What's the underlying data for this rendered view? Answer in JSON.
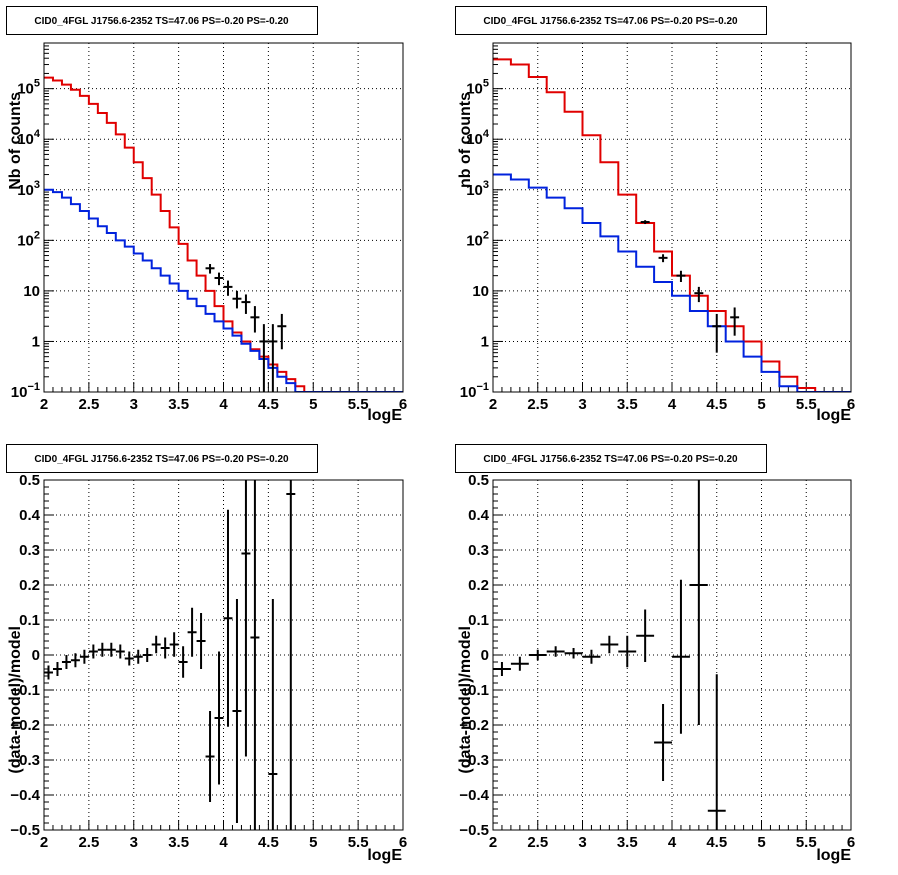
{
  "colors": {
    "data": "#000000",
    "model": "#e00000",
    "component": "#0022dd",
    "grid": "#000000"
  },
  "chart_data": [
    {
      "type": "line",
      "title": "CID0_4FGL J1756.6-2352 TS=47.06 PS=-0.20 PS=-0.20",
      "xlabel": "logE",
      "ylabel": "Nb of counts",
      "xlim": [
        2,
        6
      ],
      "ylim": [
        0.1,
        800000
      ],
      "log_y": true,
      "grid": true,
      "x_ticks": [
        "2",
        "2.5",
        "3",
        "3.5",
        "4",
        "4.5",
        "5",
        "5.5",
        "6"
      ],
      "y_ticks": [
        {
          "v": 0.1,
          "b": "10",
          "e": "−1"
        },
        {
          "v": 1,
          "b": "1",
          "e": ""
        },
        {
          "v": 10,
          "b": "10",
          "e": ""
        },
        {
          "v": 100,
          "b": "10",
          "e": "2"
        },
        {
          "v": 1000,
          "b": "10",
          "e": "3"
        },
        {
          "v": 10000,
          "b": "10",
          "e": "4"
        },
        {
          "v": 100000,
          "b": "10",
          "e": "5"
        }
      ],
      "bin_edges": [
        2.0,
        2.1,
        2.2,
        2.3,
        2.4,
        2.5,
        2.6,
        2.7,
        2.8,
        2.9,
        3.0,
        3.1,
        3.2,
        3.3,
        3.4,
        3.5,
        3.6,
        3.7,
        3.8,
        3.9,
        4.0,
        4.1,
        4.2,
        4.3,
        4.4,
        4.5,
        4.6,
        4.7,
        4.8,
        4.9,
        5.0,
        5.1,
        5.2,
        5.3,
        5.4,
        5.5,
        5.6,
        5.7,
        5.8,
        5.9,
        6.0
      ],
      "series": [
        {
          "kind": "step",
          "role": "model",
          "values": [
            165000,
            145000,
            120000,
            95000,
            72000,
            50000,
            33000,
            21000,
            12500,
            6800,
            3500,
            1700,
            800,
            380,
            180,
            85,
            40,
            20,
            10,
            5,
            2.5,
            1.5,
            1.0,
            0.7,
            0.5,
            0.35,
            0.25,
            0.18,
            0.13,
            0.1,
            0.1,
            0.1,
            0.1,
            0.1,
            0.1,
            0.1,
            0.1,
            0.1,
            0.1,
            0.1
          ]
        },
        {
          "kind": "step",
          "role": "component",
          "values": [
            1000,
            900,
            700,
            520,
            380,
            270,
            190,
            140,
            100,
            75,
            55,
            40,
            28,
            20,
            14,
            10,
            7,
            5,
            3.5,
            2.5,
            1.8,
            1.3,
            0.9,
            0.65,
            0.45,
            0.3,
            0.2,
            0.15,
            0.1,
            0.1,
            0.1,
            0.1,
            0.1,
            0.1,
            0.1,
            0.1,
            0.1,
            0.1,
            0.1,
            0.1
          ]
        },
        {
          "kind": "points",
          "role": "data",
          "points": [
            {
              "x": 3.85,
              "y": 28,
              "lo": 22,
              "hi": 34
            },
            {
              "x": 3.95,
              "y": 18,
              "lo": 13,
              "hi": 23
            },
            {
              "x": 4.05,
              "y": 12,
              "lo": 8,
              "hi": 16
            },
            {
              "x": 4.15,
              "y": 7,
              "lo": 4.5,
              "hi": 10
            },
            {
              "x": 4.25,
              "y": 6,
              "lo": 3.5,
              "hi": 8.5
            },
            {
              "x": 4.35,
              "y": 3,
              "lo": 1.5,
              "hi": 5
            },
            {
              "x": 4.45,
              "y": 1,
              "lo": 0.1,
              "hi": 2.2
            },
            {
              "x": 4.55,
              "y": 1,
              "lo": 0.1,
              "hi": 2.2
            },
            {
              "x": 4.65,
              "y": 2,
              "lo": 0.7,
              "hi": 3.5
            }
          ]
        }
      ]
    },
    {
      "type": "line",
      "title": "CID0_4FGL J1756.6-2352 TS=47.06 PS=-0.20 PS=-0.20",
      "xlabel": "logE",
      "ylabel": "nb of counts",
      "xlim": [
        2,
        6
      ],
      "ylim": [
        0.1,
        800000
      ],
      "log_y": true,
      "grid": true,
      "x_ticks": [
        "2",
        "2.5",
        "3",
        "3.5",
        "4",
        "4.5",
        "5",
        "5.5",
        "6"
      ],
      "y_ticks": [
        {
          "v": 0.1,
          "b": "10",
          "e": "−1"
        },
        {
          "v": 1,
          "b": "1",
          "e": ""
        },
        {
          "v": 10,
          "b": "10",
          "e": ""
        },
        {
          "v": 100,
          "b": "10",
          "e": "2"
        },
        {
          "v": 1000,
          "b": "10",
          "e": "3"
        },
        {
          "v": 10000,
          "b": "10",
          "e": "4"
        },
        {
          "v": 100000,
          "b": "10",
          "e": "5"
        }
      ],
      "bin_edges": [
        2.0,
        2.2,
        2.4,
        2.6,
        2.8,
        3.0,
        3.2,
        3.4,
        3.6,
        3.8,
        4.0,
        4.2,
        4.4,
        4.6,
        4.8,
        5.0,
        5.2,
        5.4,
        5.6,
        5.8,
        6.0
      ],
      "series": [
        {
          "kind": "step",
          "role": "model",
          "values": [
            380000,
            300000,
            170000,
            85000,
            35000,
            12000,
            3500,
            800,
            220,
            60,
            20,
            8,
            4,
            2,
            1,
            0.4,
            0.2,
            0.12,
            0.1,
            0.1
          ]
        },
        {
          "kind": "step",
          "role": "component",
          "values": [
            2000,
            1600,
            1100,
            700,
            430,
            220,
            120,
            60,
            30,
            15,
            8,
            4,
            2,
            1,
            0.5,
            0.25,
            0.13,
            0.1,
            0.1,
            0.1
          ]
        },
        {
          "kind": "points",
          "role": "data",
          "points": [
            {
              "x": 3.7,
              "y": 230,
              "lo": 210,
              "hi": 250
            },
            {
              "x": 3.9,
              "y": 45,
              "lo": 37,
              "hi": 53
            },
            {
              "x": 4.1,
              "y": 20,
              "lo": 15,
              "hi": 25
            },
            {
              "x": 4.3,
              "y": 9,
              "lo": 6,
              "hi": 12
            },
            {
              "x": 4.5,
              "y": 2,
              "lo": 0.6,
              "hi": 3.5
            },
            {
              "x": 4.7,
              "y": 3,
              "lo": 1.3,
              "hi": 4.7
            }
          ]
        }
      ]
    },
    {
      "type": "scatter",
      "title": "CID0_4FGL J1756.6-2352 TS=47.06 PS=-0.20 PS=-0.20",
      "xlabel": "logE",
      "ylabel": "(data-model)/model",
      "xlim": [
        2,
        6
      ],
      "ylim": [
        -0.5,
        0.5
      ],
      "log_y": false,
      "grid": true,
      "x_ticks": [
        "2",
        "2.5",
        "3",
        "3.5",
        "4",
        "4.5",
        "5",
        "5.5",
        "6"
      ],
      "y_ticks": [
        {
          "v": -0.5,
          "b": "−0.5"
        },
        {
          "v": -0.4,
          "b": "−0.4"
        },
        {
          "v": -0.3,
          "b": "−0.3"
        },
        {
          "v": -0.2,
          "b": "−0.2"
        },
        {
          "v": -0.1,
          "b": "−0.1"
        },
        {
          "v": 0,
          "b": "0"
        },
        {
          "v": 0.1,
          "b": "0.1"
        },
        {
          "v": 0.2,
          "b": "0.2"
        },
        {
          "v": 0.3,
          "b": "0.3"
        },
        {
          "v": 0.4,
          "b": "0.4"
        },
        {
          "v": 0.5,
          "b": "0.5"
        }
      ],
      "half_width": 0.05,
      "series": [
        {
          "kind": "points",
          "role": "data",
          "points": [
            {
              "x": 2.05,
              "y": -0.05,
              "err": 0.02
            },
            {
              "x": 2.15,
              "y": -0.04,
              "err": 0.02
            },
            {
              "x": 2.25,
              "y": -0.02,
              "err": 0.02
            },
            {
              "x": 2.35,
              "y": -0.015,
              "err": 0.02
            },
            {
              "x": 2.45,
              "y": -0.005,
              "err": 0.02
            },
            {
              "x": 2.55,
              "y": 0.01,
              "err": 0.02
            },
            {
              "x": 2.65,
              "y": 0.015,
              "err": 0.02
            },
            {
              "x": 2.75,
              "y": 0.015,
              "err": 0.02
            },
            {
              "x": 2.85,
              "y": 0.01,
              "err": 0.02
            },
            {
              "x": 2.95,
              "y": -0.01,
              "err": 0.02
            },
            {
              "x": 3.05,
              "y": -0.005,
              "err": 0.02
            },
            {
              "x": 3.15,
              "y": 0.0,
              "err": 0.02
            },
            {
              "x": 3.25,
              "y": 0.03,
              "err": 0.025
            },
            {
              "x": 3.35,
              "y": 0.02,
              "err": 0.03
            },
            {
              "x": 3.45,
              "y": 0.03,
              "err": 0.035
            },
            {
              "x": 3.55,
              "y": -0.02,
              "err": 0.045
            },
            {
              "x": 3.65,
              "y": 0.065,
              "err": 0.07
            },
            {
              "x": 3.75,
              "y": 0.04,
              "err": 0.08
            },
            {
              "x": 3.85,
              "y": -0.29,
              "err": 0.13
            },
            {
              "x": 3.95,
              "y": -0.18,
              "err": 0.19
            },
            {
              "x": 4.05,
              "y": 0.105,
              "err": 0.31
            },
            {
              "x": 4.15,
              "y": -0.16,
              "err": 0.32
            },
            {
              "x": 4.25,
              "y": 0.29,
              "err": 0.58
            },
            {
              "x": 4.35,
              "y": 0.05,
              "err": 0.6
            },
            {
              "x": 4.55,
              "y": -0.34,
              "err": 0.5
            },
            {
              "x": 4.75,
              "y": 0.46,
              "err": 1.0
            }
          ]
        }
      ]
    },
    {
      "type": "scatter",
      "title": "CID0_4FGL J1756.6-2352 TS=47.06 PS=-0.20 PS=-0.20",
      "xlabel": "logE",
      "ylabel": "(data-model)/model",
      "xlim": [
        2,
        6
      ],
      "ylim": [
        -0.5,
        0.5
      ],
      "log_y": false,
      "grid": true,
      "x_ticks": [
        "2",
        "2.5",
        "3",
        "3.5",
        "4",
        "4.5",
        "5",
        "5.5",
        "6"
      ],
      "y_ticks": [
        {
          "v": -0.5,
          "b": "−0.5"
        },
        {
          "v": -0.4,
          "b": "−0.4"
        },
        {
          "v": -0.3,
          "b": "−0.3"
        },
        {
          "v": -0.2,
          "b": "−0.2"
        },
        {
          "v": -0.1,
          "b": "−0.1"
        },
        {
          "v": 0,
          "b": "0"
        },
        {
          "v": 0.1,
          "b": "0.1"
        },
        {
          "v": 0.2,
          "b": "0.2"
        },
        {
          "v": 0.3,
          "b": "0.3"
        },
        {
          "v": 0.4,
          "b": "0.4"
        },
        {
          "v": 0.5,
          "b": "0.5"
        }
      ],
      "half_width": 0.1,
      "series": [
        {
          "kind": "points",
          "role": "data",
          "points": [
            {
              "x": 2.1,
              "y": -0.04,
              "err": 0.02
            },
            {
              "x": 2.3,
              "y": -0.025,
              "err": 0.02
            },
            {
              "x": 2.5,
              "y": 0.0,
              "err": 0.015
            },
            {
              "x": 2.7,
              "y": 0.01,
              "err": 0.015
            },
            {
              "x": 2.9,
              "y": 0.005,
              "err": 0.015
            },
            {
              "x": 3.1,
              "y": -0.005,
              "err": 0.02
            },
            {
              "x": 3.3,
              "y": 0.03,
              "err": 0.025
            },
            {
              "x": 3.5,
              "y": 0.01,
              "err": 0.045
            },
            {
              "x": 3.7,
              "y": 0.055,
              "err": 0.075
            },
            {
              "x": 3.9,
              "y": -0.25,
              "err": 0.11
            },
            {
              "x": 4.1,
              "y": -0.005,
              "err": 0.22
            },
            {
              "x": 4.3,
              "y": 0.2,
              "err": 0.4
            },
            {
              "x": 4.5,
              "y": -0.445,
              "err": 0.39
            }
          ]
        }
      ]
    }
  ]
}
